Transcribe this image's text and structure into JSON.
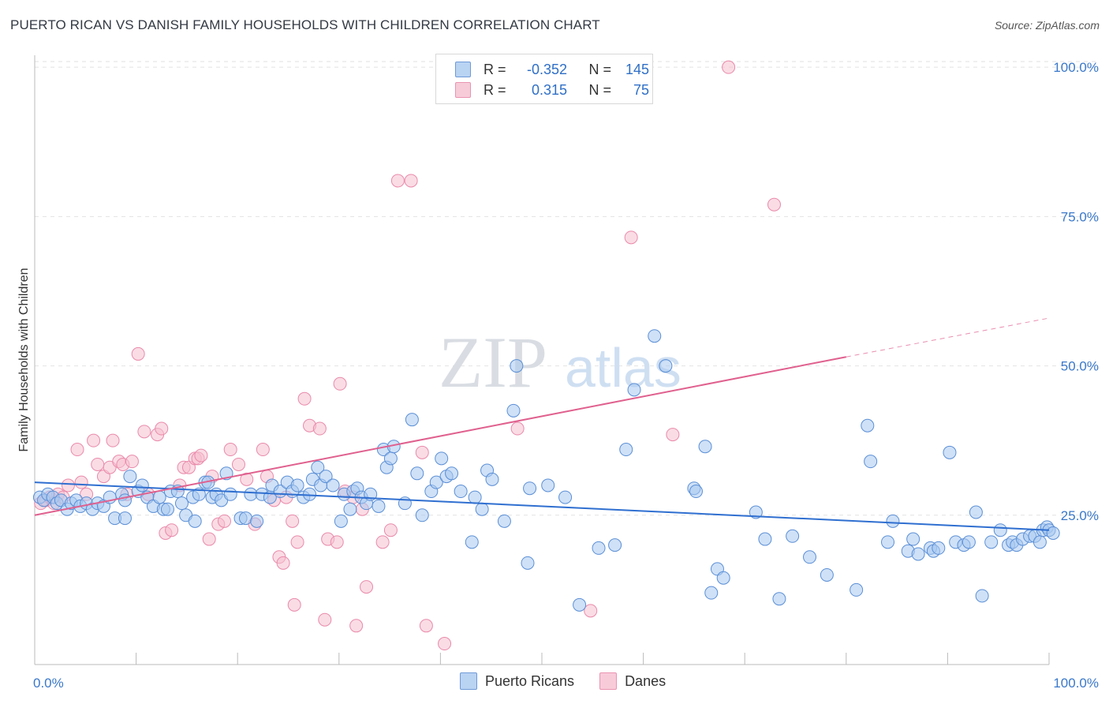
{
  "header": {
    "title": "PUERTO RICAN VS DANISH FAMILY HOUSEHOLDS WITH CHILDREN CORRELATION CHART",
    "source": "Source: ZipAtlas.com"
  },
  "watermark": {
    "zip": "ZIP",
    "atlas": "atlas"
  },
  "legend": {
    "rows": [
      {
        "r_label": "R =",
        "r_value": "-0.352",
        "n_label": "N =",
        "n_value": "145"
      },
      {
        "r_label": "R =",
        "r_value": "0.315",
        "n_label": "N =",
        "n_value": "75"
      }
    ]
  },
  "bottom_legend": {
    "series1": "Puerto Ricans",
    "series2": "Danes"
  },
  "colors": {
    "blue_fill": "#a8c8f0",
    "blue_stroke": "#5b8fd6",
    "blue_line": "#2f6fd0",
    "pink_fill": "#f6bfd0",
    "pink_stroke": "#e98aaa",
    "pink_line": "#e0608e",
    "axis_text": "#3a78c9",
    "grid": "#e2e2e2"
  },
  "chart_data": {
    "type": "scatter",
    "title": "PUERTO RICAN VS DANISH FAMILY HOUSEHOLDS WITH CHILDREN CORRELATION CHART",
    "xlabel": "",
    "ylabel": "Family Households with Children",
    "xlim": [
      0,
      100
    ],
    "ylim": [
      0,
      102
    ],
    "x_tick_labels": [
      "0.0%",
      "100.0%"
    ],
    "y_ticks": [
      25,
      50,
      75,
      100
    ],
    "y_tick_labels": [
      "25.0%",
      "50.0%",
      "75.0%",
      "100.0%"
    ],
    "series": [
      {
        "name": "Puerto Ricans",
        "r": -0.352,
        "n": 145,
        "trend": {
          "x0": 0,
          "y0": 30.5,
          "x1": 100,
          "y1": 22.5
        },
        "points": [
          [
            0.5,
            28
          ],
          [
            0.9,
            27.5
          ],
          [
            1.3,
            28.5
          ],
          [
            1.8,
            28
          ],
          [
            2.2,
            27
          ],
          [
            2.6,
            27.5
          ],
          [
            3.2,
            26
          ],
          [
            3.6,
            27
          ],
          [
            4.1,
            27.5
          ],
          [
            4.5,
            26.5
          ],
          [
            5.1,
            27
          ],
          [
            5.7,
            26
          ],
          [
            6.2,
            27
          ],
          [
            6.8,
            26.5
          ],
          [
            7.4,
            28
          ],
          [
            7.9,
            24.5
          ],
          [
            8.6,
            28.5
          ],
          [
            8.9,
            27.5
          ],
          [
            8.9,
            24.5
          ],
          [
            9.4,
            31.5
          ],
          [
            10.2,
            29
          ],
          [
            10.6,
            30
          ],
          [
            11.1,
            28
          ],
          [
            11.7,
            26.5
          ],
          [
            12.3,
            28
          ],
          [
            12.7,
            26
          ],
          [
            13.1,
            26
          ],
          [
            13.4,
            29
          ],
          [
            14.1,
            29
          ],
          [
            14.5,
            27
          ],
          [
            14.9,
            25
          ],
          [
            15.6,
            28
          ],
          [
            15.8,
            24
          ],
          [
            16.2,
            28.5
          ],
          [
            16.8,
            30.5
          ],
          [
            17.1,
            30.5
          ],
          [
            17.5,
            28
          ],
          [
            17.9,
            28.5
          ],
          [
            18.4,
            27.5
          ],
          [
            18.9,
            32
          ],
          [
            19.3,
            28.5
          ],
          [
            20.3,
            24.5
          ],
          [
            20.8,
            24.5
          ],
          [
            21.3,
            28.5
          ],
          [
            21.9,
            24
          ],
          [
            22.4,
            28.5
          ],
          [
            23.2,
            28
          ],
          [
            23.4,
            30
          ],
          [
            24.2,
            29
          ],
          [
            24.9,
            30.5
          ],
          [
            25.4,
            29
          ],
          [
            25.9,
            30
          ],
          [
            26.5,
            28
          ],
          [
            27.1,
            28.5
          ],
          [
            27.4,
            31
          ],
          [
            27.9,
            33
          ],
          [
            28.2,
            30
          ],
          [
            28.7,
            31.5
          ],
          [
            29.4,
            30
          ],
          [
            30.2,
            24
          ],
          [
            30.5,
            28.5
          ],
          [
            31.1,
            26
          ],
          [
            31.4,
            29
          ],
          [
            31.8,
            29.5
          ],
          [
            32.2,
            28
          ],
          [
            32.7,
            27
          ],
          [
            33.1,
            28.5
          ],
          [
            33.9,
            26.5
          ],
          [
            34.4,
            36
          ],
          [
            34.7,
            33
          ],
          [
            35.1,
            34.5
          ],
          [
            35.4,
            36.5
          ],
          [
            36.5,
            27
          ],
          [
            37.2,
            41
          ],
          [
            37.7,
            32
          ],
          [
            38.2,
            25
          ],
          [
            39.1,
            29
          ],
          [
            39.6,
            30.5
          ],
          [
            40.1,
            34.5
          ],
          [
            40.6,
            31.5
          ],
          [
            41.1,
            32
          ],
          [
            42.0,
            29
          ],
          [
            43.1,
            20.5
          ],
          [
            43.4,
            28
          ],
          [
            44.1,
            26
          ],
          [
            44.6,
            32.5
          ],
          [
            45.1,
            31
          ],
          [
            46.3,
            24
          ],
          [
            47.2,
            42.5
          ],
          [
            47.5,
            50
          ],
          [
            48.6,
            17
          ],
          [
            48.8,
            29.5
          ],
          [
            50.6,
            30
          ],
          [
            52.3,
            28
          ],
          [
            53.7,
            10
          ],
          [
            55.6,
            19.5
          ],
          [
            57.2,
            20
          ],
          [
            58.3,
            36
          ],
          [
            59.1,
            46
          ],
          [
            61.1,
            55
          ],
          [
            62.2,
            50
          ],
          [
            65.0,
            29.5
          ],
          [
            65.2,
            29
          ],
          [
            66.1,
            36.5
          ],
          [
            66.7,
            12
          ],
          [
            67.3,
            16
          ],
          [
            67.9,
            14.5
          ],
          [
            71.1,
            25.5
          ],
          [
            72.0,
            21
          ],
          [
            73.4,
            11
          ],
          [
            74.7,
            21.5
          ],
          [
            76.4,
            18
          ],
          [
            78.1,
            15
          ],
          [
            81.0,
            12.5
          ],
          [
            82.1,
            40
          ],
          [
            82.4,
            34
          ],
          [
            84.1,
            20.5
          ],
          [
            84.6,
            24
          ],
          [
            86.1,
            19
          ],
          [
            86.6,
            21
          ],
          [
            87.1,
            18.5
          ],
          [
            88.3,
            19.5
          ],
          [
            88.6,
            19
          ],
          [
            89.1,
            19.5
          ],
          [
            90.2,
            35.5
          ],
          [
            90.8,
            20.5
          ],
          [
            91.6,
            20
          ],
          [
            92.1,
            20.5
          ],
          [
            92.8,
            25.5
          ],
          [
            93.4,
            11.5
          ],
          [
            94.3,
            20.5
          ],
          [
            95.2,
            22.5
          ],
          [
            96.0,
            20
          ],
          [
            96.4,
            20.5
          ],
          [
            96.8,
            20
          ],
          [
            97.4,
            21
          ],
          [
            98.1,
            21.5
          ],
          [
            98.6,
            21.5
          ],
          [
            99.1,
            20.5
          ],
          [
            99.4,
            22.5
          ],
          [
            99.8,
            23
          ],
          [
            100.0,
            22.5
          ],
          [
            100.4,
            22
          ]
        ]
      },
      {
        "name": "Danes",
        "r": 0.315,
        "n": 75,
        "trend": {
          "x0": 0,
          "y0": 25,
          "x1": 80,
          "y1": 51.5,
          "dash_x1": 100,
          "dash_y1": 58
        },
        "points": [
          [
            0.6,
            27
          ],
          [
            1.1,
            27.5
          ],
          [
            1.5,
            28
          ],
          [
            1.9,
            27
          ],
          [
            2.3,
            28.5
          ],
          [
            2.8,
            28
          ],
          [
            3.3,
            30
          ],
          [
            4.2,
            36
          ],
          [
            4.6,
            30.5
          ],
          [
            5.1,
            28.5
          ],
          [
            5.8,
            37.5
          ],
          [
            6.2,
            33.5
          ],
          [
            6.8,
            31.5
          ],
          [
            7.4,
            33
          ],
          [
            7.7,
            37.5
          ],
          [
            8.3,
            34
          ],
          [
            8.7,
            33.5
          ],
          [
            9.1,
            28.5
          ],
          [
            9.6,
            34
          ],
          [
            10.2,
            52
          ],
          [
            10.8,
            39
          ],
          [
            11.2,
            28.5
          ],
          [
            12.1,
            38.5
          ],
          [
            12.5,
            39.5
          ],
          [
            12.9,
            22
          ],
          [
            13.5,
            22.5
          ],
          [
            14.3,
            30
          ],
          [
            14.7,
            33
          ],
          [
            15.2,
            33
          ],
          [
            15.8,
            34.5
          ],
          [
            16.1,
            34.5
          ],
          [
            16.4,
            35
          ],
          [
            17.2,
            21
          ],
          [
            17.5,
            31.5
          ],
          [
            18.1,
            23.5
          ],
          [
            18.7,
            24
          ],
          [
            19.3,
            36
          ],
          [
            20.1,
            33.5
          ],
          [
            20.9,
            31
          ],
          [
            21.7,
            23.5
          ],
          [
            22.5,
            36
          ],
          [
            22.9,
            31.5
          ],
          [
            23.6,
            27.5
          ],
          [
            24.1,
            18
          ],
          [
            24.5,
            17
          ],
          [
            24.8,
            28
          ],
          [
            25.4,
            24
          ],
          [
            25.9,
            20.5
          ],
          [
            25.6,
            10
          ],
          [
            26.6,
            44.5
          ],
          [
            27.1,
            40
          ],
          [
            28.1,
            39.5
          ],
          [
            28.6,
            7.5
          ],
          [
            28.9,
            21
          ],
          [
            29.8,
            20.5
          ],
          [
            30.1,
            47
          ],
          [
            30.6,
            29
          ],
          [
            31.4,
            28
          ],
          [
            31.7,
            6.5
          ],
          [
            32.3,
            26
          ],
          [
            32.7,
            13
          ],
          [
            34.3,
            20.5
          ],
          [
            35.1,
            22.5
          ],
          [
            35.8,
            81
          ],
          [
            37.1,
            81
          ],
          [
            38.2,
            35.5
          ],
          [
            38.6,
            6.5
          ],
          [
            40.4,
            3.5
          ],
          [
            47.6,
            39.5
          ],
          [
            54.8,
            9
          ],
          [
            58.8,
            71.5
          ],
          [
            62.9,
            38.5
          ],
          [
            68.4,
            100
          ],
          [
            72.9,
            77
          ]
        ]
      }
    ]
  }
}
